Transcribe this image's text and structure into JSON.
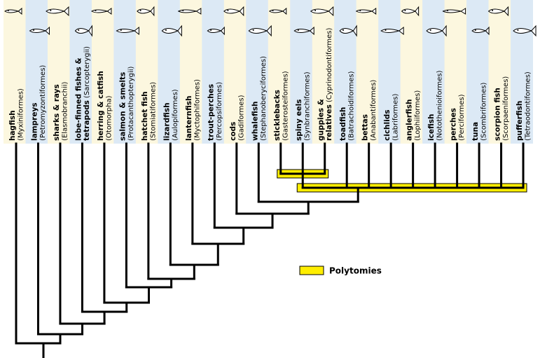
{
  "leaves": [
    {
      "common": "hagfish",
      "scientific": "(Myxiniformes)"
    },
    {
      "common": "lampreys",
      "scientific": "(Petromyzontiformes)"
    },
    {
      "common": "sharks & rays",
      "scientific": "(Elasmobranchii)"
    },
    {
      "common": "lobe-finned fishes & tetrapods",
      "scientific": "(Sarcopterygii)"
    },
    {
      "common": "herring & catfish",
      "scientific": "(Otomorpha)"
    },
    {
      "common": "salmon & smelts",
      "scientific": "(Protacanthopterygii)"
    },
    {
      "common": "hatchet fish",
      "scientific": "(Stomiatiformes)"
    },
    {
      "common": "lizardfish",
      "scientific": "(Aulopiformes)"
    },
    {
      "common": "lanternfish",
      "scientific": "(Myctophiformes)"
    },
    {
      "common": "trout-perches",
      "scientific": "(Percopsiformes)"
    },
    {
      "common": "cods",
      "scientific": "(Gadiformes)"
    },
    {
      "common": "whalefish",
      "scientific": "(Stephanoberyciformes)"
    },
    {
      "common": "sticklebacks",
      "scientific": "(Gasterosteiformes)"
    },
    {
      "common": "spiny eels",
      "scientific": "(Synbranchiformes)"
    },
    {
      "common": "guppies & relatives",
      "scientific": "(Cyprinodontiformes)"
    },
    {
      "common": "toadfish",
      "scientific": "(Batrachoidiformes)"
    },
    {
      "common": "bettas",
      "scientific": "(Anabantiformes)"
    },
    {
      "common": "cichlids",
      "scientific": "(Labriformes)"
    },
    {
      "common": "anglerfish",
      "scientific": "(Lophiiformes)"
    },
    {
      "common": "icefish",
      "scientific": "(Notothenioiformes)"
    },
    {
      "common": "perches",
      "scientific": "(Perciformes)"
    },
    {
      "common": "tuna",
      "scientific": "(Scombriformes)"
    },
    {
      "common": "scorpion fish",
      "scientific": "(Scorpaeniformes)"
    },
    {
      "common": "pufferfish",
      "scientific": "(Tetraodontiformes)"
    }
  ],
  "legend": {
    "label": "Polytomies"
  }
}
